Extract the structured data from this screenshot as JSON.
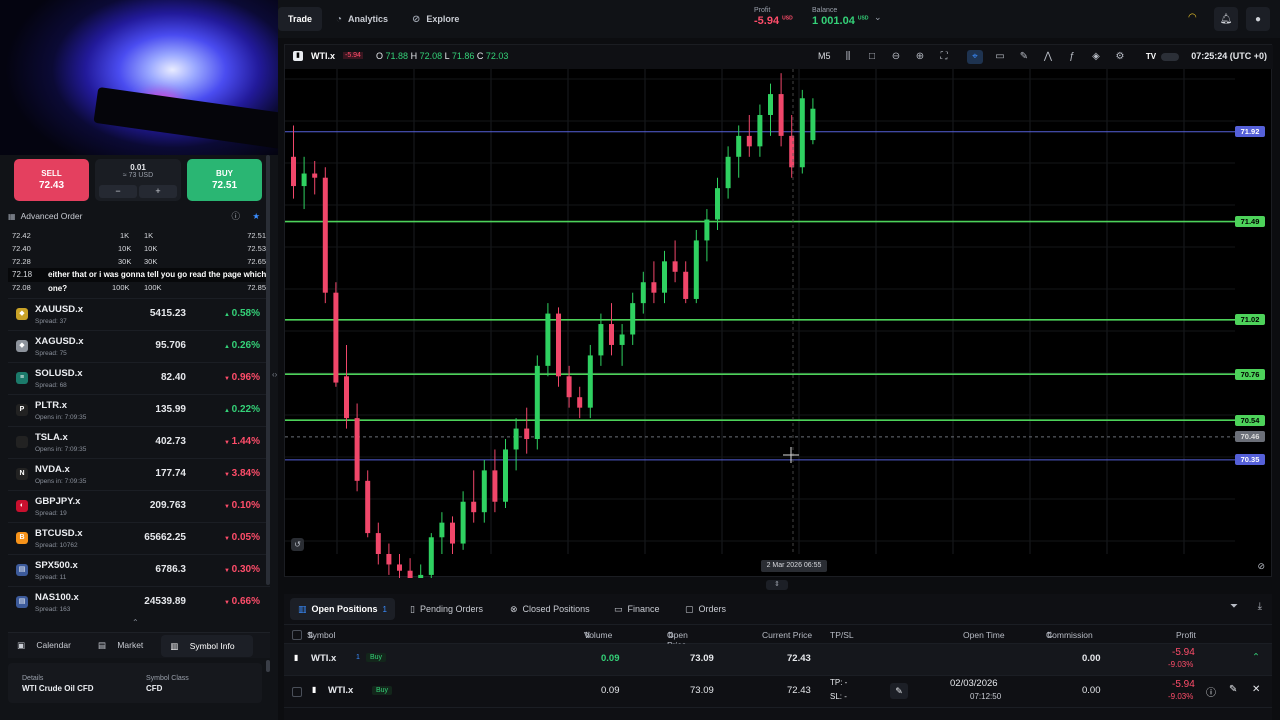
{
  "nav": {
    "trade": "Trade",
    "analytics": "Analytics",
    "explore": "Explore"
  },
  "account": {
    "profit_label": "Profit",
    "profit_value": "-5.94",
    "profit_ccy": "USD",
    "balance_label": "Balance",
    "balance_value": "1 001.04",
    "balance_ccy": "USD"
  },
  "order": {
    "sell_label": "SELL",
    "sell_price": "72.43",
    "buy_label": "BUY",
    "buy_price": "72.51",
    "qty": "0.01",
    "qty_value": "≈ 73 USD",
    "minus": "−",
    "plus": "+"
  },
  "advanced": {
    "label": "Advanced Order"
  },
  "depth": [
    {
      "bid": "72.42",
      "bid_vol": "1K",
      "ask_vol": "1K",
      "ask": "72.51"
    },
    {
      "bid": "72.40",
      "bid_vol": "10K",
      "ask_vol": "10K",
      "ask": "72.53"
    },
    {
      "bid": "72.28",
      "bid_vol": "30K",
      "ask_vol": "30K",
      "ask": "72.65"
    },
    {
      "bid": "72.18",
      "bid_vol": "",
      "ask_vol": "",
      "ask": ""
    },
    {
      "bid": "72.08",
      "bid_vol": "100K",
      "ask_vol": "100K",
      "ask": "72.85"
    }
  ],
  "caption": "either that or i was gonna tell you go read the page which one?",
  "watchlist": [
    {
      "symbol": "XAUUSD.x",
      "sub": "Spread: 37",
      "price": "5415.23",
      "change": "0.58%",
      "dir": "up",
      "logo": "◆",
      "color": "#c9a227"
    },
    {
      "symbol": "XAGUSD.x",
      "sub": "Spread: 75",
      "price": "95.706",
      "change": "0.26%",
      "dir": "up",
      "logo": "◆",
      "color": "#8d939c"
    },
    {
      "symbol": "SOLUSD.x",
      "sub": "Spread: 68",
      "price": "82.40",
      "change": "0.96%",
      "dir": "dn",
      "logo": "≡",
      "color": "#1b7a6a"
    },
    {
      "symbol": "PLTR.x",
      "sub": "Opens in: 7:09:35",
      "price": "135.99",
      "change": "0.22%",
      "dir": "up",
      "logo": "P",
      "color": "#222"
    },
    {
      "symbol": "TSLA.x",
      "sub": "Opens in: 7:09:35",
      "price": "402.73",
      "change": "1.44%",
      "dir": "dn",
      "logo": "",
      "color": "#222"
    },
    {
      "symbol": "NVDA.x",
      "sub": "Opens in: 7:09:35",
      "price": "177.74",
      "change": "3.84%",
      "dir": "dn",
      "logo": "N",
      "color": "#222"
    },
    {
      "symbol": "GBPJPY.x",
      "sub": "Spread: 19",
      "price": "209.763",
      "change": "0.10%",
      "dir": "dn",
      "logo": "◐",
      "color": "#c8102e"
    },
    {
      "symbol": "BTCUSD.x",
      "sub": "Spread: 10762",
      "price": "65662.25",
      "change": "0.05%",
      "dir": "dn",
      "logo": "B",
      "color": "#f7931a"
    },
    {
      "symbol": "SPX500.x",
      "sub": "Spread: 11",
      "price": "6786.3",
      "change": "0.30%",
      "dir": "dn",
      "logo": "▤",
      "color": "#3c5a9a"
    },
    {
      "symbol": "NAS100.x",
      "sub": "Spread: 163",
      "price": "24539.89",
      "change": "0.66%",
      "dir": "dn",
      "logo": "▤",
      "color": "#3c5a9a"
    }
  ],
  "info_tabs": {
    "calendar": "Calendar",
    "market": "Market",
    "symbol_info": "Symbol Info"
  },
  "details": {
    "details_label": "Details",
    "details_value": "WTI Crude Oil CFD",
    "class_label": "Symbol Class",
    "class_value": "CFD"
  },
  "chart_header": {
    "symbol": "WTI.x",
    "change": "-5.94",
    "o_label": "O",
    "o": "71.88",
    "h_label": "H",
    "h": "72.08",
    "l_label": "L",
    "l": "71.86",
    "c_label": "C",
    "c": "72.03",
    "timeframe": "M5",
    "clock": "07:25:24 (UTC +0)",
    "crosshair_time": "2 Mar 2026 06:55"
  },
  "chart_data": {
    "type": "candlestick",
    "symbol": "WTI.x",
    "timeframe": "M5",
    "ylim": [
      69.9,
      72.22
    ],
    "x_axis_marker": "2 Mar 2026 06:55",
    "price_labels": [
      {
        "price": "71.92",
        "color": "#5560d8"
      },
      {
        "price": "71.49",
        "color": "#4dd25a"
      },
      {
        "price": "71.02",
        "color": "#4dd25a"
      },
      {
        "price": "70.76",
        "color": "#4dd25a"
      },
      {
        "price": "70.54",
        "color": "#4dd25a"
      },
      {
        "price": "70.46",
        "color": "#6b6f78"
      },
      {
        "price": "70.35",
        "color": "#5560d8"
      }
    ],
    "candles": [
      [
        71.8,
        71.95,
        71.6,
        71.66
      ],
      [
        71.66,
        71.8,
        71.55,
        71.72
      ],
      [
        71.72,
        71.78,
        71.62,
        71.7
      ],
      [
        71.7,
        71.75,
        71.1,
        71.15
      ],
      [
        71.15,
        71.2,
        70.7,
        70.72
      ],
      [
        70.75,
        70.9,
        70.5,
        70.55
      ],
      [
        70.55,
        70.62,
        70.2,
        70.25
      ],
      [
        70.25,
        70.3,
        69.98,
        70.0
      ],
      [
        70.0,
        70.05,
        69.85,
        69.9
      ],
      [
        69.9,
        69.95,
        69.8,
        69.85
      ],
      [
        69.85,
        69.9,
        69.75,
        69.82
      ],
      [
        69.82,
        69.88,
        69.7,
        69.78
      ],
      [
        69.78,
        69.85,
        69.72,
        69.8
      ],
      [
        69.8,
        70.0,
        69.78,
        69.98
      ],
      [
        69.98,
        70.1,
        69.9,
        70.05
      ],
      [
        70.05,
        70.08,
        69.9,
        69.95
      ],
      [
        69.95,
        70.2,
        69.92,
        70.15
      ],
      [
        70.15,
        70.3,
        70.05,
        70.1
      ],
      [
        70.1,
        70.35,
        70.05,
        70.3
      ],
      [
        70.3,
        70.4,
        70.1,
        70.15
      ],
      [
        70.15,
        70.45,
        70.12,
        70.4
      ],
      [
        70.4,
        70.55,
        70.3,
        70.5
      ],
      [
        70.5,
        70.6,
        70.38,
        70.45
      ],
      [
        70.45,
        70.85,
        70.4,
        70.8
      ],
      [
        70.8,
        71.1,
        70.75,
        71.05
      ],
      [
        71.05,
        71.08,
        70.7,
        70.75
      ],
      [
        70.75,
        70.8,
        70.6,
        70.65
      ],
      [
        70.65,
        70.7,
        70.55,
        70.6
      ],
      [
        70.6,
        70.9,
        70.55,
        70.85
      ],
      [
        70.85,
        71.05,
        70.8,
        71.0
      ],
      [
        71.0,
        71.1,
        70.85,
        70.9
      ],
      [
        70.9,
        71.0,
        70.8,
        70.95
      ],
      [
        70.95,
        71.15,
        70.9,
        71.1
      ],
      [
        71.1,
        71.25,
        71.05,
        71.2
      ],
      [
        71.2,
        71.3,
        71.1,
        71.15
      ],
      [
        71.15,
        71.35,
        71.1,
        71.3
      ],
      [
        71.3,
        71.4,
        71.2,
        71.25
      ],
      [
        71.25,
        71.3,
        71.1,
        71.12
      ],
      [
        71.12,
        71.45,
        71.1,
        71.4
      ],
      [
        71.4,
        71.55,
        71.3,
        71.5
      ],
      [
        71.5,
        71.7,
        71.45,
        71.65
      ],
      [
        71.65,
        71.85,
        71.6,
        71.8
      ],
      [
        71.8,
        71.95,
        71.7,
        71.9
      ],
      [
        71.9,
        72.0,
        71.8,
        71.85
      ],
      [
        71.85,
        72.05,
        71.8,
        72.0
      ],
      [
        72.0,
        72.15,
        71.9,
        72.1
      ],
      [
        72.1,
        72.2,
        71.85,
        71.9
      ],
      [
        71.9,
        72.0,
        71.7,
        71.75
      ],
      [
        71.75,
        72.12,
        71.72,
        72.08
      ],
      [
        71.88,
        72.08,
        71.86,
        72.03
      ]
    ]
  },
  "bottom_tabs": {
    "open": "Open Positions",
    "open_count": "1",
    "pending": "Pending Orders",
    "closed": "Closed Positions",
    "finance": "Finance",
    "orders": "Orders"
  },
  "table_header": {
    "symbol": "Symbol",
    "volume": "Volume",
    "open_price": "Open Price",
    "current_price": "Current Price",
    "tpsl": "TP/SL",
    "open_time": "Open Time",
    "commission": "Commission",
    "profit": "Profit"
  },
  "group_row": {
    "symbol": "WTI.x",
    "count": "1",
    "side": "Buy",
    "volume": "0.09",
    "open_price": "73.09",
    "current_price": "72.43",
    "commission": "0.00",
    "profit": "-5.94",
    "profit_pct": "-9.03%"
  },
  "position_row": {
    "symbol": "WTI.x",
    "side": "Buy",
    "volume": "0.09",
    "open_price": "73.09",
    "current_price": "72.43",
    "tp": "TP: -",
    "sl": "SL: -",
    "date": "02/03/2026",
    "time": "07:12:50",
    "commission": "0.00",
    "profit": "-5.94",
    "profit_pct": "-9.03%"
  },
  "colors": {
    "bull": "#2fd161",
    "bear": "#f0476a",
    "accent": "#3a8dff"
  }
}
